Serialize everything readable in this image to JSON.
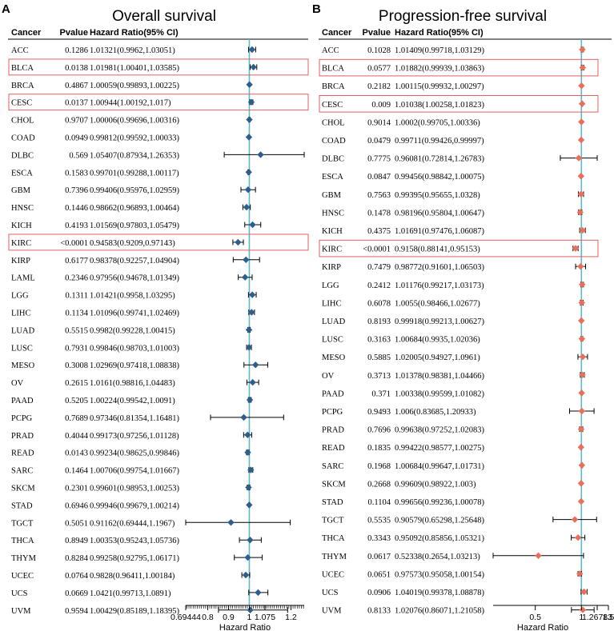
{
  "panels": [
    {
      "letter": "A",
      "title": "Overall survival",
      "headers": {
        "cancer": "Cancer",
        "pvalue": "Pvalue",
        "hr": "Hazard Ratio(95% CI)"
      },
      "marker_color": "#2e5f8c",
      "ref_line_color": "#5fb8d0",
      "highlight_color": "#e06060",
      "highlighted": [
        "BLCA",
        "CESC",
        "KIRC"
      ],
      "cancers": [
        "ACC",
        "BLCA",
        "BRCA",
        "CESC",
        "CHOL",
        "COAD",
        "DLBC",
        "ESCA",
        "GBM",
        "HNSC",
        "KICH",
        "KIRC",
        "KIRP",
        "LAML",
        "LGG",
        "LIHC",
        "LUAD",
        "LUSC",
        "MESO",
        "OV",
        "PAAD",
        "PCPG",
        "PRAD",
        "READ",
        "SARC",
        "SKCM",
        "STAD",
        "TGCT",
        "THCA",
        "THYM",
        "UCEC",
        "UCS",
        "UVM"
      ],
      "pvalues": [
        "0.1286",
        "0.0138",
        "0.4867",
        "0.0137",
        "0.9707",
        "0.0949",
        "0.569",
        "0.1583",
        "0.7396",
        "0.1446",
        "0.4193",
        "<0.0001",
        "0.6177",
        "0.2346",
        "0.1311",
        "0.1134",
        "0.5515",
        "0.7931",
        "0.3008",
        "0.2615",
        "0.5205",
        "0.7689",
        "0.4044",
        "0.0143",
        "0.1464",
        "0.2301",
        "0.6946",
        "0.5051",
        "0.8949",
        "0.8284",
        "0.0764",
        "0.0669",
        "0.9594"
      ],
      "hr_text": [
        "1.01321(0.9962,1.03051)",
        "1.01981(1.00401,1.03585)",
        "1.00059(0.99893,1.00225)",
        "1.00944(1.00192,1.017)",
        "1.00006(0.99696,1.00316)",
        "0.99812(0.99592,1.00033)",
        "1.05407(0.87934,1.26353)",
        "0.99701(0.99288,1.00117)",
        "0.99406(0.95976,1.02959)",
        "0.98662(0.96893,1.00464)",
        "1.01569(0.97803,1.05479)",
        "0.94583(0.9209,0.97143)",
        "0.98378(0.92257,1.04904)",
        "0.97956(0.94678,1.01349)",
        "1.01421(0.9958,1.03295)",
        "1.01096(0.99741,1.02469)",
        "0.9982(0.99228,1.00415)",
        "0.99846(0.98703,1.01003)",
        "1.02969(0.97418,1.08838)",
        "1.0161(0.98816,1.04483)",
        "1.00224(0.99542,1.0091)",
        "0.97346(0.81354,1.16481)",
        "0.99173(0.97256,1.01128)",
        "0.99234(0.98625,0.99846)",
        "1.00706(0.99754,1.01667)",
        "0.99601(0.98953,1.00253)",
        "0.99946(0.99679,1.00214)",
        "0.91162(0.69444,1.1967)",
        "1.00353(0.95243,1.05736)",
        "0.99258(0.92795,1.06171)",
        "0.9828(0.96411,1.00184)",
        "1.0421(0.99713,1.0891)",
        "1.00429(0.85189,1.18395)"
      ],
      "x_axis": {
        "label": "Hazard Ratio",
        "scale": "linear",
        "range": [
          0.69444,
          1.26353
        ],
        "ticks": [
          "0.69444",
          "0.8",
          "0.9",
          "1",
          "1.075",
          "1.2"
        ],
        "tick_values": [
          0.69444,
          0.8,
          0.9,
          1,
          1.075,
          1.2
        ]
      }
    },
    {
      "letter": "B",
      "title": "Progression-free survival",
      "headers": {
        "cancer": "Cancer",
        "pvalue": "Pvalue",
        "hr": "Hazard Ratio(95% CI)"
      },
      "marker_color": "#e8705a",
      "ref_line_color": "#5fb8d0",
      "highlight_color": "#e06060",
      "highlighted": [
        "BLCA",
        "CESC",
        "KIRC"
      ],
      "cancers": [
        "ACC",
        "BLCA",
        "BRCA",
        "CESC",
        "CHOL",
        "COAD",
        "DLBC",
        "ESCA",
        "GBM",
        "HNSC",
        "KICH",
        "KIRC",
        "KIRP",
        "LGG",
        "LIHC",
        "LUAD",
        "LUSC",
        "MESO",
        "OV",
        "PAAD",
        "PCPG",
        "PRAD",
        "READ",
        "SARC",
        "SKCM",
        "STAD",
        "TGCT",
        "THCA",
        "THYM",
        "UCEC",
        "UCS",
        "UVM"
      ],
      "pvalues": [
        "0.1028",
        "0.0577",
        "0.2182",
        "0.009",
        "0.9014",
        "0.0479",
        "0.7775",
        "0.0847",
        "0.7563",
        "0.1478",
        "0.4375",
        "<0.0001",
        "0.7479",
        "0.2412",
        "0.6078",
        "0.8193",
        "0.3163",
        "0.5885",
        "0.3713",
        "0.371",
        "0.9493",
        "0.7696",
        "0.1835",
        "0.1968",
        "0.2668",
        "0.1104",
        "0.5535",
        "0.3343",
        "0.0617",
        "0.0651",
        "0.0906",
        "0.8133"
      ],
      "hr_text": [
        "1.01409(0.99718,1.03129)",
        "1.01882(0.99939,1.03863)",
        "1.00115(0.99932,1.00297)",
        "1.01038(1.00258,1.01823)",
        "1.0002(0.99705,1.00336)",
        "0.99711(0.99426,0.99997)",
        "0.96081(0.72814,1.26783)",
        "0.99456(0.98842,1.00075)",
        "0.99395(0.95655,1.0328)",
        "0.98196(0.95804,1.00647)",
        "1.01691(0.97476,1.06087)",
        "0.9158(0.88141,0.95153)",
        "0.98772(0.91601,1.06503)",
        "1.01176(0.99217,1.03173)",
        "1.0055(0.98466,1.02677)",
        "0.99918(0.99213,1.00627)",
        "1.00684(0.9935,1.02036)",
        "1.02005(0.94927,1.0961)",
        "1.01378(0.98381,1.04466)",
        "1.00338(0.99599,1.01082)",
        "1.006(0.83685,1.20933)",
        "0.99638(0.97252,1.02083)",
        "0.99422(0.98577,1.00275)",
        "1.00684(0.99647,1.01731)",
        "0.99609(0.98922,1.003)",
        "0.99656(0.99236,1.00078)",
        "0.90579(0.65298,1.25648)",
        "0.95092(0.85856,1.05321)",
        "0.52338(0.2654,1.03213)",
        "0.97573(0.95058,1.00154)",
        "1.04019(0.99378,1.08878)",
        "1.02076(0.86071,1.21058)"
      ],
      "x_axis": {
        "label": "Hazard Ratio",
        "scale": "log",
        "range": [
          0.2654,
          1.5
        ],
        "ticks": [
          "0.5",
          "1",
          "1.26783",
          "1.5"
        ],
        "tick_values": [
          0.5,
          1,
          1.26783,
          1.5
        ]
      }
    }
  ],
  "chart_data": [
    {
      "type": "forest",
      "title": "Overall survival",
      "xlabel": "Hazard Ratio",
      "categories": [
        "ACC",
        "BLCA",
        "BRCA",
        "CESC",
        "CHOL",
        "COAD",
        "DLBC",
        "ESCA",
        "GBM",
        "HNSC",
        "KICH",
        "KIRC",
        "KIRP",
        "LAML",
        "LGG",
        "LIHC",
        "LUAD",
        "LUSC",
        "MESO",
        "OV",
        "PAAD",
        "PCPG",
        "PRAD",
        "READ",
        "SARC",
        "SKCM",
        "STAD",
        "TGCT",
        "THCA",
        "THYM",
        "UCEC",
        "UCS",
        "UVM"
      ],
      "hr": [
        1.01321,
        1.01981,
        1.00059,
        1.00944,
        1.00006,
        0.99812,
        1.05407,
        0.99701,
        0.99406,
        0.98662,
        1.01569,
        0.94583,
        0.98378,
        0.97956,
        1.01421,
        1.01096,
        0.9982,
        0.99846,
        1.02969,
        1.0161,
        1.00224,
        0.97346,
        0.99173,
        0.99234,
        1.00706,
        0.99601,
        0.99946,
        0.91162,
        1.00353,
        0.99258,
        0.9828,
        1.0421,
        1.00429
      ],
      "lower": [
        0.9962,
        1.00401,
        0.99893,
        1.00192,
        0.99696,
        0.99592,
        0.87934,
        0.99288,
        0.95976,
        0.96893,
        0.97803,
        0.9209,
        0.92257,
        0.94678,
        0.9958,
        0.99741,
        0.99228,
        0.98703,
        0.97418,
        0.98816,
        0.99542,
        0.81354,
        0.97256,
        0.98625,
        0.99754,
        0.98953,
        0.99679,
        0.69444,
        0.95243,
        0.92795,
        0.96411,
        0.99713,
        0.85189
      ],
      "upper": [
        1.03051,
        1.03585,
        1.00225,
        1.017,
        1.00316,
        1.00033,
        1.26353,
        1.00117,
        1.02959,
        1.00464,
        1.05479,
        0.97143,
        1.04904,
        1.01349,
        1.03295,
        1.02469,
        1.00415,
        1.01003,
        1.08838,
        1.04483,
        1.0091,
        1.16481,
        1.01128,
        0.99846,
        1.01667,
        1.00253,
        1.00214,
        1.1967,
        1.05736,
        1.06171,
        1.00184,
        1.0891,
        1.18395
      ],
      "reference": 1
    },
    {
      "type": "forest",
      "title": "Progression-free survival",
      "xlabel": "Hazard Ratio",
      "categories": [
        "ACC",
        "BLCA",
        "BRCA",
        "CESC",
        "CHOL",
        "COAD",
        "DLBC",
        "ESCA",
        "GBM",
        "HNSC",
        "KICH",
        "KIRC",
        "KIRP",
        "LGG",
        "LIHC",
        "LUAD",
        "LUSC",
        "MESO",
        "OV",
        "PAAD",
        "PCPG",
        "PRAD",
        "READ",
        "SARC",
        "SKCM",
        "STAD",
        "TGCT",
        "THCA",
        "THYM",
        "UCEC",
        "UCS",
        "UVM"
      ],
      "hr": [
        1.01409,
        1.01882,
        1.00115,
        1.01038,
        1.0002,
        0.99711,
        0.96081,
        0.99456,
        0.99395,
        0.98196,
        1.01691,
        0.9158,
        0.98772,
        1.01176,
        1.0055,
        0.99918,
        1.00684,
        1.02005,
        1.01378,
        1.00338,
        1.006,
        0.99638,
        0.99422,
        1.00684,
        0.99609,
        0.99656,
        0.90579,
        0.95092,
        0.52338,
        0.97573,
        1.04019,
        1.02076
      ],
      "lower": [
        0.99718,
        0.99939,
        0.99932,
        1.00258,
        0.99705,
        0.99426,
        0.72814,
        0.98842,
        0.95655,
        0.95804,
        0.97476,
        0.88141,
        0.91601,
        0.99217,
        0.98466,
        0.99213,
        0.9935,
        0.94927,
        0.98381,
        0.99599,
        0.83685,
        0.97252,
        0.98577,
        0.99647,
        0.98922,
        0.99236,
        0.65298,
        0.85856,
        0.2654,
        0.95058,
        0.99378,
        0.86071
      ],
      "upper": [
        1.03129,
        1.03863,
        1.00297,
        1.01823,
        1.00336,
        0.99997,
        1.26783,
        1.00075,
        1.0328,
        1.00647,
        1.06087,
        0.95153,
        1.06503,
        1.03173,
        1.02677,
        1.00627,
        1.02036,
        1.0961,
        1.04466,
        1.01082,
        1.20933,
        1.02083,
        1.00275,
        1.01731,
        1.003,
        1.00078,
        1.25648,
        1.05321,
        1.03213,
        1.00154,
        1.08878,
        1.21058
      ],
      "reference": 1
    }
  ]
}
